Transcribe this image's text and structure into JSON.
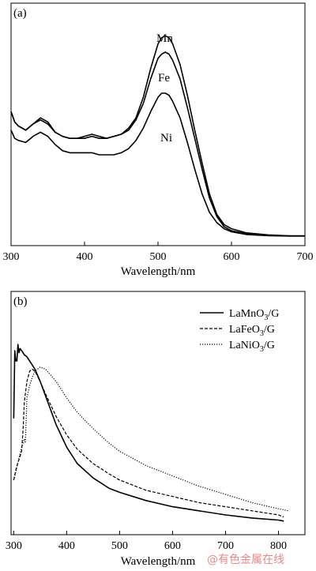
{
  "chart_data": [
    {
      "type": "line",
      "panel_label": "(a)",
      "xlabel": "Wavelength/nm",
      "ylabel": "",
      "xlim": [
        300,
        700
      ],
      "xticks": [
        300,
        400,
        500,
        600,
        700
      ],
      "ylim": [
        0,
        1
      ],
      "show_y_ticks": false,
      "grid": false,
      "series": [
        {
          "name": "Mn",
          "style": "solid",
          "x": [
            300,
            305,
            310,
            320,
            330,
            340,
            350,
            360,
            370,
            380,
            390,
            400,
            410,
            420,
            430,
            440,
            450,
            460,
            470,
            480,
            490,
            500,
            505,
            510,
            515,
            520,
            530,
            540,
            550,
            560,
            570,
            580,
            590,
            600,
            620,
            650,
            680,
            700
          ],
          "y": [
            0.61,
            0.56,
            0.54,
            0.52,
            0.55,
            0.58,
            0.56,
            0.51,
            0.49,
            0.48,
            0.48,
            0.48,
            0.49,
            0.48,
            0.48,
            0.49,
            0.5,
            0.53,
            0.58,
            0.68,
            0.82,
            0.94,
            0.97,
            0.98,
            0.97,
            0.94,
            0.84,
            0.69,
            0.52,
            0.36,
            0.21,
            0.11,
            0.06,
            0.04,
            0.02,
            0.01,
            0.005,
            0.005
          ]
        },
        {
          "name": "Fe",
          "style": "solid",
          "x": [
            300,
            305,
            310,
            320,
            330,
            340,
            350,
            360,
            370,
            380,
            390,
            400,
            410,
            420,
            430,
            440,
            450,
            460,
            470,
            480,
            490,
            500,
            505,
            510,
            515,
            520,
            530,
            540,
            550,
            560,
            570,
            580,
            590,
            600,
            620,
            650,
            680,
            700
          ],
          "y": [
            0.61,
            0.56,
            0.54,
            0.52,
            0.55,
            0.57,
            0.55,
            0.51,
            0.49,
            0.48,
            0.48,
            0.49,
            0.5,
            0.49,
            0.48,
            0.49,
            0.5,
            0.52,
            0.57,
            0.65,
            0.77,
            0.87,
            0.89,
            0.9,
            0.89,
            0.86,
            0.77,
            0.63,
            0.48,
            0.33,
            0.19,
            0.1,
            0.05,
            0.03,
            0.015,
            0.008,
            0.005,
            0.005
          ]
        },
        {
          "name": "Ni",
          "style": "solid",
          "x": [
            300,
            305,
            310,
            320,
            330,
            340,
            350,
            360,
            370,
            380,
            390,
            400,
            410,
            420,
            430,
            440,
            450,
            460,
            470,
            480,
            490,
            500,
            505,
            510,
            515,
            520,
            530,
            540,
            550,
            560,
            570,
            580,
            590,
            600,
            620,
            650,
            680,
            700
          ],
          "y": [
            0.52,
            0.48,
            0.47,
            0.46,
            0.49,
            0.51,
            0.49,
            0.45,
            0.42,
            0.41,
            0.41,
            0.41,
            0.41,
            0.4,
            0.4,
            0.4,
            0.41,
            0.43,
            0.47,
            0.53,
            0.61,
            0.68,
            0.7,
            0.7,
            0.69,
            0.66,
            0.58,
            0.46,
            0.33,
            0.21,
            0.12,
            0.07,
            0.04,
            0.025,
            0.012,
            0.006,
            0.004,
            0.004
          ]
        }
      ],
      "annotations": [
        "Mn",
        "Fe",
        "Ni"
      ]
    },
    {
      "type": "line",
      "panel_label": "(b)",
      "xlabel": "Wavelength/nm",
      "ylabel": "",
      "xlim": [
        295,
        850
      ],
      "xticks": [
        300,
        400,
        500,
        600,
        700,
        800
      ],
      "ylim": [
        0,
        1
      ],
      "show_y_ticks": false,
      "grid": false,
      "legend_position": "top-right",
      "series": [
        {
          "name": "LaMnO3/G",
          "legend_label": {
            "base": "LaMnO",
            "sub": "3",
            "tail": "/G"
          },
          "style": "solid",
          "x": [
            300,
            302,
            304,
            306,
            308,
            310,
            312,
            315,
            320,
            325,
            330,
            340,
            350,
            360,
            380,
            400,
            420,
            450,
            480,
            500,
            550,
            600,
            650,
            700,
            750,
            800,
            810
          ],
          "y": [
            0.52,
            0.85,
            0.8,
            0.8,
            0.88,
            0.84,
            0.86,
            0.85,
            0.83,
            0.82,
            0.8,
            0.76,
            0.7,
            0.63,
            0.49,
            0.38,
            0.3,
            0.23,
            0.18,
            0.16,
            0.12,
            0.09,
            0.07,
            0.05,
            0.035,
            0.025,
            0.02
          ]
        },
        {
          "name": "LaFeO3/G",
          "legend_label": {
            "base": "LaFeO",
            "sub": "3",
            "tail": "/G"
          },
          "style": "dashed",
          "x": [
            300,
            305,
            310,
            315,
            318,
            320,
            325,
            330,
            335,
            340,
            350,
            360,
            380,
            400,
            420,
            450,
            480,
            500,
            550,
            600,
            650,
            700,
            750,
            800,
            810
          ],
          "y": [
            0.22,
            0.28,
            0.32,
            0.36,
            0.48,
            0.6,
            0.7,
            0.75,
            0.76,
            0.75,
            0.7,
            0.64,
            0.53,
            0.44,
            0.37,
            0.3,
            0.25,
            0.22,
            0.17,
            0.14,
            0.11,
            0.09,
            0.07,
            0.05,
            0.04
          ]
        },
        {
          "name": "LaNiO3/G",
          "legend_label": {
            "base": "LaNiO",
            "sub": "3",
            "tail": "/G"
          },
          "style": "dotted",
          "x": [
            300,
            305,
            310,
            315,
            320,
            322,
            325,
            330,
            335,
            340,
            350,
            360,
            380,
            400,
            420,
            450,
            480,
            500,
            550,
            600,
            650,
            700,
            750,
            800,
            820
          ],
          "y": [
            0.22,
            0.27,
            0.33,
            0.38,
            0.42,
            0.4,
            0.62,
            0.68,
            0.72,
            0.75,
            0.77,
            0.76,
            0.7,
            0.62,
            0.55,
            0.47,
            0.4,
            0.36,
            0.29,
            0.24,
            0.19,
            0.15,
            0.11,
            0.08,
            0.07
          ]
        }
      ]
    }
  ],
  "watermark": "@有色金属在线"
}
